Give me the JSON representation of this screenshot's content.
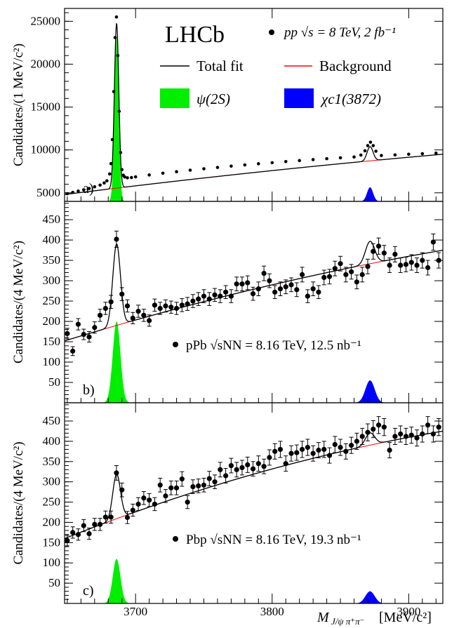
{
  "chart_data": {
    "type": "line",
    "experiment": "LHCb",
    "x_axis": {
      "label_main": "M",
      "label_sub": "J/ψ π⁺π⁻",
      "unit": "[MeV/c²]",
      "lim": [
        3648,
        3925
      ],
      "ticks": [
        3700,
        3800,
        3900
      ],
      "tick_labels": [
        "3700",
        "3800",
        "3900"
      ]
    },
    "legend": {
      "total_fit": "Total fit",
      "background": "Background",
      "psi2s": "ψ(2S)",
      "chic1": "χc1(3872)",
      "colors": {
        "psi2s": "#00ee00",
        "chic1": "#0000ff",
        "background": "#ff0000",
        "total_fit": "#000000",
        "data": "#000000"
      }
    },
    "panels": [
      {
        "id": "a",
        "panel_label": "a)",
        "ylabel": "Candidates/(1 MeV/c²)",
        "ylim": [
          4000,
          26500
        ],
        "yticks": [
          5000,
          10000,
          15000,
          20000,
          25000
        ],
        "ytick_labels": [
          "5000",
          "10000",
          "15000",
          "20000",
          "25000"
        ],
        "dataset_label": "pp  √s = 8 TeV, 2 fb⁻¹",
        "bin_width": 1,
        "background": {
          "x0": 3648,
          "y0": 4800,
          "x1": 3925,
          "y1": 9500,
          "curvature": 0.18
        },
        "psi": {
          "mean": 3686.1,
          "sigma": 1.6,
          "amp": 19200
        },
        "chi": {
          "mean": 3871.7,
          "sigma": 2.2,
          "amp": 1650
        },
        "data_x": [
          3650,
          3654,
          3658,
          3662,
          3666,
          3670,
          3674,
          3677,
          3679,
          3681,
          3682,
          3683,
          3684,
          3685,
          3686,
          3687,
          3688,
          3689,
          3690,
          3691,
          3692,
          3694,
          3697,
          3700,
          3710,
          3720,
          3730,
          3740,
          3750,
          3760,
          3770,
          3780,
          3790,
          3800,
          3810,
          3820,
          3830,
          3840,
          3850,
          3860,
          3865,
          3868,
          3870,
          3872,
          3874,
          3876,
          3880,
          3890,
          3900,
          3910,
          3920
        ],
        "data_y": [
          4900,
          5050,
          5200,
          5350,
          5500,
          5700,
          5900,
          6150,
          6400,
          7200,
          8400,
          11200,
          16800,
          23100,
          25500,
          21000,
          14500,
          9700,
          7700,
          7050,
          6850,
          6750,
          6780,
          6860,
          7080,
          7280,
          7460,
          7640,
          7800,
          7960,
          8110,
          8250,
          8390,
          8510,
          8640,
          8760,
          8870,
          8980,
          9080,
          9180,
          9400,
          9900,
          10500,
          10900,
          10500,
          9850,
          9350,
          9420,
          9500,
          9560,
          9620
        ],
        "data_err": []
      },
      {
        "id": "b",
        "panel_label": "b)",
        "ylabel": "Candidates/(4 MeV/c²)",
        "ylim": [
          0,
          495
        ],
        "yticks": [
          50,
          100,
          150,
          200,
          250,
          300,
          350,
          400,
          450
        ],
        "ytick_labels": [
          "50",
          "100",
          "150",
          "200",
          "250",
          "300",
          "350",
          "400",
          "450"
        ],
        "dataset_label": "pPb  √sNN = 8.16 TeV, 12.5 nb⁻¹",
        "bin_width": 4,
        "background": {
          "x0": 3648,
          "y0": 152,
          "x1": 3925,
          "y1": 375,
          "curvature": 0.28
        },
        "psi": {
          "mean": 3686.1,
          "sigma": 2.8,
          "amp": 200
        },
        "chi": {
          "mean": 3871.7,
          "sigma": 3.4,
          "amp": 55
        },
        "data_x": [
          3650,
          3654,
          3658,
          3662,
          3666,
          3670,
          3674,
          3678,
          3682,
          3686,
          3690,
          3694,
          3698,
          3702,
          3706,
          3710,
          3714,
          3718,
          3722,
          3726,
          3730,
          3734,
          3738,
          3742,
          3746,
          3750,
          3754,
          3758,
          3762,
          3766,
          3770,
          3774,
          3778,
          3782,
          3786,
          3790,
          3794,
          3798,
          3802,
          3806,
          3810,
          3814,
          3818,
          3822,
          3826,
          3830,
          3834,
          3838,
          3842,
          3846,
          3850,
          3854,
          3858,
          3862,
          3866,
          3870,
          3874,
          3878,
          3882,
          3886,
          3890,
          3894,
          3898,
          3902,
          3906,
          3910,
          3914,
          3918,
          3922
        ],
        "data_y": [
          170,
          127,
          193,
          168,
          162,
          185,
          215,
          232,
          248,
          402,
          267,
          238,
          208,
          225,
          215,
          202,
          240,
          232,
          238,
          235,
          232,
          240,
          243,
          250,
          255,
          262,
          255,
          265,
          262,
          272,
          262,
          292,
          292,
          295,
          268,
          280,
          318,
          300,
          272,
          280,
          285,
          290,
          278,
          315,
          262,
          280,
          272,
          308,
          310,
          330,
          342,
          315,
          322,
          297,
          315,
          335,
          372,
          385,
          368,
          338,
          365,
          338,
          340,
          345,
          338,
          350,
          332,
          395,
          350
        ],
        "data_err": [
          13,
          11,
          14,
          13,
          13,
          14,
          15,
          15,
          16,
          20,
          16,
          15,
          14,
          15,
          15,
          14,
          15,
          15,
          15,
          15,
          15,
          16,
          16,
          16,
          16,
          16,
          16,
          16,
          16,
          16,
          16,
          17,
          17,
          17,
          16,
          17,
          18,
          17,
          16,
          17,
          17,
          17,
          17,
          18,
          16,
          17,
          16,
          18,
          18,
          18,
          18,
          18,
          18,
          17,
          18,
          18,
          19,
          20,
          19,
          18,
          19,
          18,
          18,
          19,
          18,
          19,
          18,
          20,
          19
        ]
      },
      {
        "id": "c",
        "panel_label": "c)",
        "ylabel": "Candidates/(4 MeV/c²)",
        "ylim": [
          0,
          495
        ],
        "yticks": [
          50,
          100,
          150,
          200,
          250,
          300,
          350,
          400,
          450
        ],
        "ytick_labels": [
          "50",
          "100",
          "150",
          "200",
          "250",
          "300",
          "350",
          "400",
          "450"
        ],
        "dataset_label": "Pbp  √sNN = 8.16 TeV, 19.3 nb⁻¹",
        "bin_width": 4,
        "background": {
          "x0": 3648,
          "y0": 160,
          "x1": 3925,
          "y1": 425,
          "curvature": 0.4
        },
        "psi": {
          "mean": 3686.1,
          "sigma": 2.8,
          "amp": 110
        },
        "chi": {
          "mean": 3871.7,
          "sigma": 3.4,
          "amp": 30
        },
        "data_x": [
          3650,
          3654,
          3658,
          3662,
          3666,
          3670,
          3674,
          3678,
          3682,
          3686,
          3690,
          3694,
          3698,
          3702,
          3706,
          3710,
          3714,
          3718,
          3722,
          3726,
          3730,
          3734,
          3738,
          3742,
          3746,
          3750,
          3754,
          3758,
          3762,
          3766,
          3770,
          3774,
          3778,
          3782,
          3786,
          3790,
          3794,
          3798,
          3802,
          3806,
          3810,
          3814,
          3818,
          3822,
          3826,
          3830,
          3834,
          3838,
          3842,
          3846,
          3850,
          3854,
          3858,
          3862,
          3866,
          3870,
          3874,
          3878,
          3882,
          3886,
          3890,
          3894,
          3898,
          3902,
          3906,
          3910,
          3914,
          3918,
          3922
        ],
        "data_y": [
          155,
          175,
          170,
          192,
          172,
          195,
          195,
          213,
          213,
          322,
          280,
          212,
          230,
          245,
          260,
          255,
          245,
          292,
          265,
          285,
          285,
          307,
          250,
          288,
          290,
          292,
          308,
          300,
          330,
          315,
          340,
          330,
          335,
          342,
          332,
          345,
          338,
          360,
          375,
          380,
          345,
          370,
          372,
          380,
          385,
          370,
          378,
          380,
          365,
          392,
          385,
          375,
          390,
          400,
          412,
          422,
          430,
          440,
          435,
          378,
          412,
          418,
          412,
          415,
          408,
          418,
          440,
          418,
          435
        ],
        "data_err": [
          13,
          14,
          14,
          15,
          14,
          15,
          15,
          15,
          15,
          18,
          17,
          15,
          15,
          16,
          16,
          16,
          16,
          17,
          16,
          17,
          17,
          18,
          16,
          17,
          17,
          17,
          18,
          17,
          18,
          18,
          18,
          18,
          18,
          19,
          18,
          19,
          18,
          19,
          19,
          20,
          19,
          19,
          19,
          20,
          20,
          19,
          19,
          20,
          19,
          20,
          20,
          19,
          20,
          20,
          20,
          21,
          21,
          21,
          21,
          19,
          20,
          20,
          20,
          20,
          20,
          20,
          21,
          20,
          21
        ]
      }
    ]
  }
}
